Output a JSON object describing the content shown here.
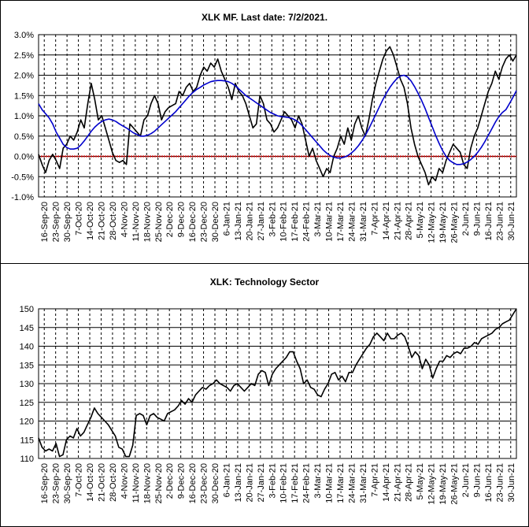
{
  "chart_data": [
    {
      "type": "line",
      "title": "XLK MF. Last date: 7/2/2021.",
      "y_ticks": [
        "3.0%",
        "2.5%",
        "2.0%",
        "1.5%",
        "1.0%",
        "0.5%",
        "0.0%",
        "-0.5%",
        "-1.0%"
      ],
      "ylim": [
        -1.0,
        3.0
      ],
      "x_tick_labels": [
        "16-Sep-20",
        "23-Sep-20",
        "30-Sep-20",
        "7-Oct-20",
        "14-Oct-20",
        "21-Oct-20",
        "28-Oct-20",
        "4-Nov-20",
        "11-Nov-20",
        "18-Nov-20",
        "25-Nov-20",
        "2-Dec-20",
        "9-Dec-20",
        "16-Dec-20",
        "23-Dec-20",
        "30-Dec-20",
        "6-Jan-21",
        "13-Jan-21",
        "20-Jan-21",
        "27-Jan-21",
        "3-Feb-21",
        "10-Feb-21",
        "17-Feb-21",
        "24-Feb-21",
        "3-Mar-21",
        "10-Mar-21",
        "17-Mar-21",
        "24-Mar-21",
        "31-Mar-21",
        "7-Apr-21",
        "14-Apr-21",
        "21-Apr-21",
        "28-Apr-21",
        "5-May-21",
        "12-May-21",
        "19-May-21",
        "26-May-21",
        "2-Jun-21",
        "9-Jun-21",
        "16-Jun-21",
        "23-Jun-21",
        "30-Jun-21"
      ],
      "grid": true,
      "reference_line": {
        "value": 0.0,
        "color": "#cc0000"
      },
      "series": [
        {
          "color": "#000000",
          "values": [
            0.05,
            -0.2,
            -0.4,
            -0.1,
            0.05,
            -0.1,
            -0.3,
            0.2,
            0.3,
            0.5,
            0.4,
            0.6,
            0.9,
            0.7,
            1.3,
            1.8,
            1.4,
            0.9,
            1.0,
            0.7,
            0.4,
            0.1,
            -0.1,
            -0.15,
            -0.1,
            -0.2,
            0.8,
            0.7,
            0.6,
            0.5,
            0.9,
            1.0,
            1.3,
            1.5,
            1.3,
            0.9,
            1.1,
            1.2,
            1.25,
            1.3,
            1.6,
            1.5,
            1.7,
            1.8,
            1.6,
            1.7,
            2.0,
            2.2,
            2.1,
            2.3,
            2.2,
            2.4,
            2.1,
            1.9,
            1.7,
            1.4,
            1.8,
            1.6,
            1.5,
            1.3,
            1.0,
            0.7,
            0.8,
            1.5,
            1.3,
            0.9,
            0.8,
            0.6,
            0.7,
            0.9,
            1.1,
            1.0,
            0.9,
            0.7,
            1.0,
            0.8,
            0.4,
            0.0,
            0.2,
            -0.1,
            -0.3,
            -0.5,
            -0.3,
            -0.4,
            0.0,
            0.2,
            0.5,
            0.3,
            0.7,
            0.4,
            0.8,
            1.0,
            0.7,
            0.5,
            0.9,
            1.4,
            1.8,
            2.1,
            2.4,
            2.6,
            2.7,
            2.5,
            2.2,
            1.9,
            1.7,
            1.3,
            0.7,
            0.3,
            0.0,
            -0.2,
            -0.4,
            -0.7,
            -0.5,
            -0.6,
            -0.3,
            -0.4,
            -0.1,
            0.1,
            0.3,
            0.2,
            0.1,
            -0.2,
            -0.3,
            0.2,
            0.5,
            0.7,
            1.0,
            1.3,
            1.6,
            1.8,
            2.1,
            1.9,
            2.2,
            2.4,
            2.5,
            2.35,
            2.5
          ]
        },
        {
          "color": "#0000cc",
          "values": [
            1.3,
            1.15,
            1.05,
            0.95,
            0.8,
            0.6,
            0.45,
            0.3,
            0.22,
            0.18,
            0.18,
            0.2,
            0.28,
            0.38,
            0.5,
            0.62,
            0.72,
            0.8,
            0.86,
            0.9,
            0.92,
            0.9,
            0.86,
            0.8,
            0.75,
            0.7,
            0.64,
            0.58,
            0.54,
            0.5,
            0.5,
            0.52,
            0.56,
            0.62,
            0.7,
            0.78,
            0.86,
            0.94,
            1.02,
            1.1,
            1.2,
            1.3,
            1.4,
            1.5,
            1.58,
            1.65,
            1.7,
            1.76,
            1.8,
            1.84,
            1.86,
            1.87,
            1.87,
            1.86,
            1.84,
            1.8,
            1.74,
            1.66,
            1.58,
            1.5,
            1.44,
            1.38,
            1.32,
            1.26,
            1.2,
            1.14,
            1.08,
            1.04,
            1.0,
            0.98,
            0.97,
            0.96,
            0.94,
            0.9,
            0.84,
            0.76,
            0.66,
            0.56,
            0.46,
            0.36,
            0.26,
            0.16,
            0.08,
            0.02,
            -0.02,
            -0.04,
            -0.04,
            -0.02,
            0.02,
            0.08,
            0.16,
            0.26,
            0.38,
            0.52,
            0.68,
            0.86,
            1.04,
            1.22,
            1.4,
            1.56,
            1.7,
            1.82,
            1.92,
            1.98,
            2.0,
            1.96,
            1.86,
            1.72,
            1.56,
            1.38,
            1.18,
            0.96,
            0.74,
            0.52,
            0.32,
            0.14,
            0.0,
            -0.1,
            -0.16,
            -0.2,
            -0.2,
            -0.18,
            -0.14,
            -0.08,
            0.0,
            0.1,
            0.22,
            0.36,
            0.52,
            0.68,
            0.84,
            0.98,
            1.08,
            1.15,
            1.3,
            1.45,
            1.62
          ]
        }
      ]
    },
    {
      "type": "line",
      "title": "XLK: Technology Sector",
      "y_ticks": [
        "150",
        "145",
        "140",
        "135",
        "130",
        "125",
        "120",
        "115",
        "110"
      ],
      "ylim": [
        110,
        150
      ],
      "x_tick_labels": [
        "16-Sep-20",
        "23-Sep-20",
        "30-Sep-20",
        "7-Oct-20",
        "14-Oct-20",
        "21-Oct-20",
        "28-Oct-20",
        "4-Nov-20",
        "11-Nov-20",
        "18-Nov-20",
        "25-Nov-20",
        "2-Dec-20",
        "9-Dec-20",
        "16-Dec-20",
        "23-Dec-20",
        "30-Dec-20",
        "6-Jan-21",
        "13-Jan-21",
        "20-Jan-21",
        "27-Jan-21",
        "3-Feb-21",
        "10-Feb-21",
        "17-Feb-21",
        "24-Feb-21",
        "3-Mar-21",
        "10-Mar-21",
        "17-Mar-21",
        "24-Mar-21",
        "31-Mar-21",
        "7-Apr-21",
        "14-Apr-21",
        "21-Apr-21",
        "28-Apr-21",
        "5-May-21",
        "12-May-21",
        "19-May-21",
        "26-May-21",
        "2-Jun-21",
        "9-Jun-21",
        "16-Jun-21",
        "23-Jun-21",
        "30-Jun-21"
      ],
      "grid": true,
      "series": [
        {
          "color": "#000000",
          "values": [
            115.5,
            113.0,
            112.0,
            112.5,
            112.0,
            114.0,
            110.5,
            111.0,
            115.0,
            116.0,
            115.5,
            118.0,
            116.0,
            117.0,
            119.0,
            121.0,
            123.5,
            122.0,
            121.0,
            120.0,
            119.0,
            117.5,
            116.0,
            113.0,
            112.5,
            110.5,
            110.5,
            113.5,
            121.5,
            122.0,
            121.5,
            119.0,
            121.5,
            122.0,
            121.0,
            120.5,
            120.0,
            122.0,
            122.5,
            123.0,
            124.0,
            125.5,
            124.5,
            126.0,
            125.0,
            127.0,
            128.0,
            129.0,
            128.5,
            129.5,
            130.0,
            131.0,
            130.0,
            129.5,
            129.0,
            128.0,
            129.5,
            130.0,
            129.0,
            128.0,
            129.0,
            130.0,
            129.5,
            132.5,
            133.5,
            133.0,
            129.5,
            132.5,
            134.0,
            135.0,
            136.0,
            137.0,
            138.5,
            138.5,
            136.0,
            134.0,
            130.0,
            131.0,
            129.0,
            128.5,
            127.0,
            126.5,
            128.5,
            130.0,
            132.5,
            133.0,
            131.0,
            132.0,
            130.5,
            133.0,
            133.0,
            135.0,
            136.5,
            138.0,
            139.5,
            140.5,
            142.5,
            143.5,
            142.5,
            141.5,
            143.5,
            142.0,
            142.0,
            143.0,
            143.5,
            142.5,
            140.0,
            137.0,
            138.5,
            137.5,
            134.0,
            136.5,
            135.0,
            131.5,
            134.0,
            136.0,
            136.0,
            137.5,
            137.0,
            138.0,
            138.5,
            138.0,
            139.5,
            139.5,
            140.0,
            141.0,
            140.5,
            142.0,
            142.5,
            143.0,
            143.5,
            144.5,
            145.0,
            146.0,
            146.5,
            147.0,
            148.5,
            150.0
          ]
        }
      ]
    }
  ]
}
